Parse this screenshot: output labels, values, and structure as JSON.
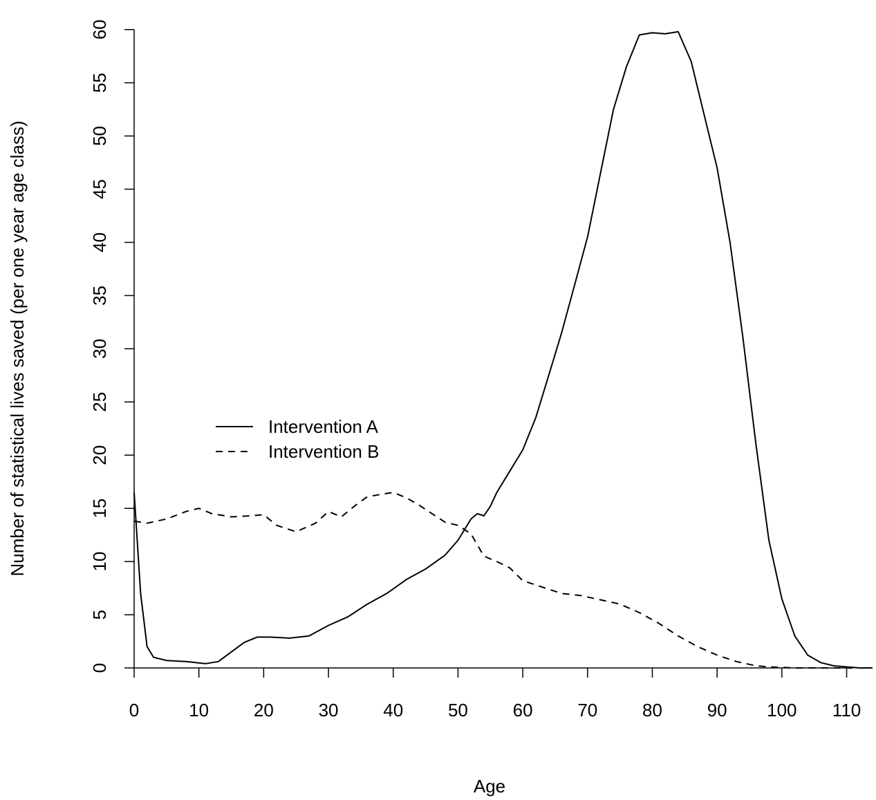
{
  "chart_data": {
    "type": "line",
    "title": "",
    "xlabel": "Age",
    "ylabel": "Number of statistical lives saved (per one year age class)",
    "xlim": [
      0,
      114
    ],
    "ylim": [
      0,
      62
    ],
    "xticks": [
      0,
      10,
      20,
      30,
      40,
      50,
      60,
      70,
      80,
      90,
      100,
      110
    ],
    "yticks": [
      0,
      5,
      10,
      15,
      20,
      25,
      30,
      35,
      40,
      45,
      50,
      55,
      60
    ],
    "grid": false,
    "legend_position": "middle-left",
    "series": [
      {
        "name": "Intervention A",
        "line_style": "solid",
        "color": "#000000",
        "x": [
          0,
          1,
          2,
          3,
          5,
          8,
          11,
          13,
          15,
          17,
          19,
          21,
          24,
          27,
          30,
          33,
          36,
          39,
          42,
          45,
          48,
          50,
          52,
          53,
          54,
          55,
          56,
          57,
          58,
          60,
          62,
          64,
          66,
          68,
          70,
          72,
          74,
          76,
          78,
          80,
          82,
          84,
          86,
          88,
          90,
          92,
          94,
          96,
          98,
          100,
          102,
          104,
          106,
          108,
          110,
          112,
          114
        ],
        "y": [
          16.5,
          7,
          2,
          1,
          0.7,
          0.6,
          0.4,
          0.6,
          1.5,
          2.4,
          2.9,
          2.9,
          2.8,
          3.0,
          4.0,
          4.8,
          6.0,
          7.0,
          8.3,
          9.3,
          10.6,
          12.0,
          14.0,
          14.5,
          14.3,
          15.2,
          16.5,
          17.5,
          18.5,
          20.5,
          23.5,
          27.5,
          31.5,
          36.0,
          40.5,
          46.5,
          52.5,
          56.5,
          59.5,
          59.7,
          59.6,
          59.8,
          57.0,
          52.0,
          47.0,
          40.0,
          31.0,
          21.0,
          12.0,
          6.5,
          3.0,
          1.2,
          0.5,
          0.2,
          0.1,
          0,
          0
        ]
      },
      {
        "name": "Intervention B",
        "line_style": "dashed",
        "color": "#000000",
        "x": [
          0,
          2,
          5,
          8,
          10,
          12,
          15,
          18,
          20,
          22,
          25,
          28,
          30,
          32,
          34,
          36,
          38,
          40,
          42,
          44,
          46,
          48,
          50,
          52,
          54,
          56,
          58,
          60,
          63,
          66,
          69,
          72,
          75,
          78,
          81,
          84,
          87,
          90,
          93,
          96,
          98,
          100,
          102,
          105,
          108,
          111,
          114
        ],
        "y": [
          13.8,
          13.6,
          14.0,
          14.7,
          15.0,
          14.5,
          14.2,
          14.3,
          14.4,
          13.4,
          12.8,
          13.6,
          14.7,
          14.2,
          15.2,
          16.1,
          16.3,
          16.5,
          16.0,
          15.3,
          14.5,
          13.7,
          13.4,
          12.6,
          10.5,
          10.0,
          9.4,
          8.2,
          7.6,
          7.0,
          6.8,
          6.4,
          6.0,
          5.2,
          4.2,
          3.0,
          2.0,
          1.2,
          0.6,
          0.2,
          0.1,
          0.05,
          0,
          0,
          0,
          0,
          0
        ]
      }
    ]
  }
}
